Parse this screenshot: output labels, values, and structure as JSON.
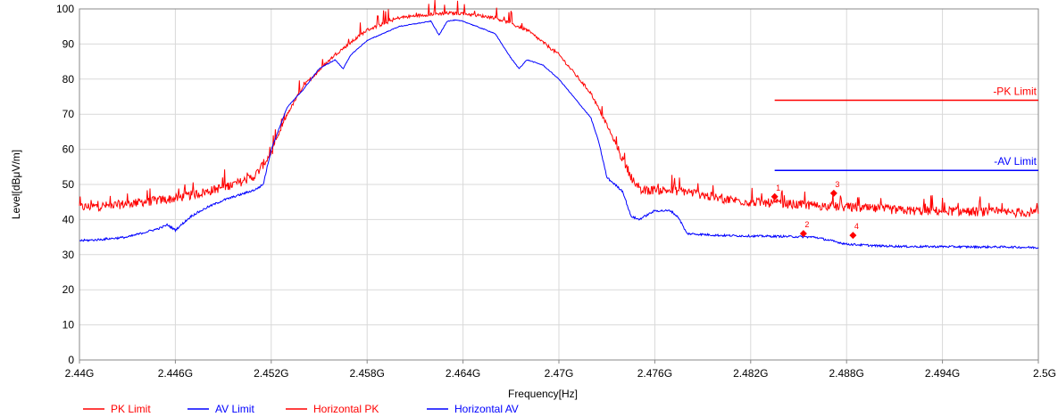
{
  "chart_data": {
    "type": "line",
    "xlabel": "Frequency[Hz]",
    "ylabel": "Level[dBμV/m]",
    "xlim": [
      2.44,
      2.5
    ],
    "ylim": [
      0,
      100
    ],
    "grid": true,
    "legend_placement": "bottom-left",
    "x_ticks": [
      {
        "value": 2.44,
        "label": "2.44G"
      },
      {
        "value": 2.446,
        "label": "2.446G"
      },
      {
        "value": 2.452,
        "label": "2.452G"
      },
      {
        "value": 2.458,
        "label": "2.458G"
      },
      {
        "value": 2.464,
        "label": "2.464G"
      },
      {
        "value": 2.47,
        "label": "2.47G"
      },
      {
        "value": 2.476,
        "label": "2.476G"
      },
      {
        "value": 2.482,
        "label": "2.482G"
      },
      {
        "value": 2.488,
        "label": "2.488G"
      },
      {
        "value": 2.494,
        "label": "2.494G"
      },
      {
        "value": 2.5,
        "label": "2.5G"
      }
    ],
    "y_ticks": [
      0,
      10,
      20,
      30,
      40,
      50,
      60,
      70,
      80,
      90,
      100
    ],
    "limits": [
      {
        "name": "PK Limit",
        "label": "-PK Limit",
        "value": 74,
        "x_start": 2.4835,
        "x_end": 2.5,
        "color": "#ff0000"
      },
      {
        "name": "AV Limit",
        "label": "-AV Limit",
        "value": 54,
        "x_start": 2.4835,
        "x_end": 2.5,
        "color": "#0000ff"
      }
    ],
    "series": [
      {
        "name": "Horizontal PK",
        "color": "#ff0000",
        "noise": 1.3,
        "x": [
          2.44,
          2.442,
          2.444,
          2.446,
          2.448,
          2.45,
          2.451,
          2.452,
          2.453,
          2.454,
          2.456,
          2.458,
          2.46,
          2.462,
          2.463,
          2.464,
          2.466,
          2.468,
          2.47,
          2.472,
          2.473,
          2.474,
          2.475,
          2.476,
          2.478,
          2.48,
          2.482,
          2.484,
          2.486,
          2.488,
          2.49,
          2.492,
          2.494,
          2.496,
          2.498,
          2.5
        ],
        "y": [
          43.5,
          44,
          45,
          46,
          48,
          50.5,
          52.5,
          59,
          70,
          78,
          87,
          94,
          97.5,
          98.5,
          98.8,
          98.7,
          97.5,
          94,
          87,
          76,
          67,
          57,
          48,
          48.5,
          48,
          46,
          45,
          44.5,
          44,
          43.5,
          43,
          42.5,
          42.5,
          42.2,
          42,
          42
        ]
      },
      {
        "name": "Horizontal AV",
        "color": "#0000ff",
        "noise": 0.3,
        "x": [
          2.44,
          2.441,
          2.443,
          2.445,
          2.4455,
          2.446,
          2.447,
          2.448,
          2.449,
          2.45,
          2.451,
          2.4515,
          2.452,
          2.453,
          2.454,
          2.455,
          2.456,
          2.4565,
          2.457,
          2.458,
          2.46,
          2.462,
          2.4625,
          2.463,
          2.4635,
          2.464,
          2.466,
          2.467,
          2.4675,
          2.468,
          2.469,
          2.47,
          2.472,
          2.4725,
          2.473,
          2.474,
          2.4745,
          2.475,
          2.476,
          2.477,
          2.4775,
          2.478,
          2.48,
          2.482,
          2.484,
          2.486,
          2.487,
          2.488,
          2.49,
          2.492,
          2.494,
          2.496,
          2.498,
          2.5
        ],
        "y": [
          34,
          34.2,
          35,
          37.5,
          38.5,
          37,
          41,
          43.5,
          45.5,
          47,
          48.5,
          50,
          60,
          72,
          77,
          83,
          85.5,
          83,
          87,
          91,
          95,
          96.5,
          92.5,
          96.5,
          96.8,
          96.5,
          93,
          86,
          83,
          85.5,
          84,
          80,
          69,
          62,
          52,
          48,
          41,
          40,
          42.5,
          42.5,
          40.5,
          36,
          35.5,
          35.3,
          35.2,
          35,
          34,
          33,
          32.5,
          32.3,
          32.3,
          32.2,
          32.2,
          32
        ]
      }
    ],
    "markers": [
      {
        "label": "1",
        "x": 2.4835,
        "y": 46.5
      },
      {
        "label": "2",
        "x": 2.4853,
        "y": 36
      },
      {
        "label": "3",
        "x": 2.4872,
        "y": 47.5
      },
      {
        "label": "4",
        "x": 2.4884,
        "y": 35.5
      }
    ],
    "legend": [
      {
        "label": "PK Limit",
        "color": "#ff0000"
      },
      {
        "label": "AV Limit",
        "color": "#0000ff"
      },
      {
        "label": "Horizontal PK",
        "color": "#ff0000"
      },
      {
        "label": "Horizontal AV",
        "color": "#0000ff"
      }
    ]
  }
}
